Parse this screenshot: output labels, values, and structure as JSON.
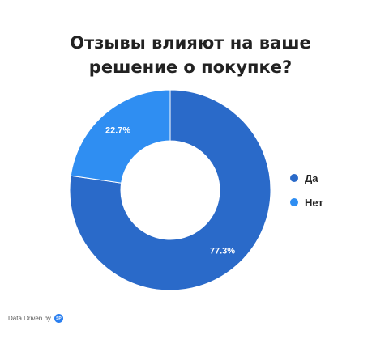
{
  "chart_data": {
    "type": "pie",
    "variant": "donut",
    "title": "Отзывы влияют на ваше решение о покупке?",
    "categories": [
      "Да",
      "Нет"
    ],
    "values": [
      77.3,
      22.7
    ],
    "value_labels": [
      "77.3%",
      "22.7%"
    ],
    "colors": [
      "#2a6ac9",
      "#2f8ef2"
    ],
    "legend": "right"
  },
  "title_lines": [
    "Отзывы влияют на ваше",
    "решение о покупке?"
  ],
  "legend_items": [
    {
      "label": "Да",
      "color": "#2a6ac9"
    },
    {
      "label": "Нет",
      "color": "#2f8ef2"
    }
  ],
  "footer": {
    "text": "Data Driven by",
    "logo_icon": "datadriven-logo-icon",
    "logo_text": "SP"
  }
}
